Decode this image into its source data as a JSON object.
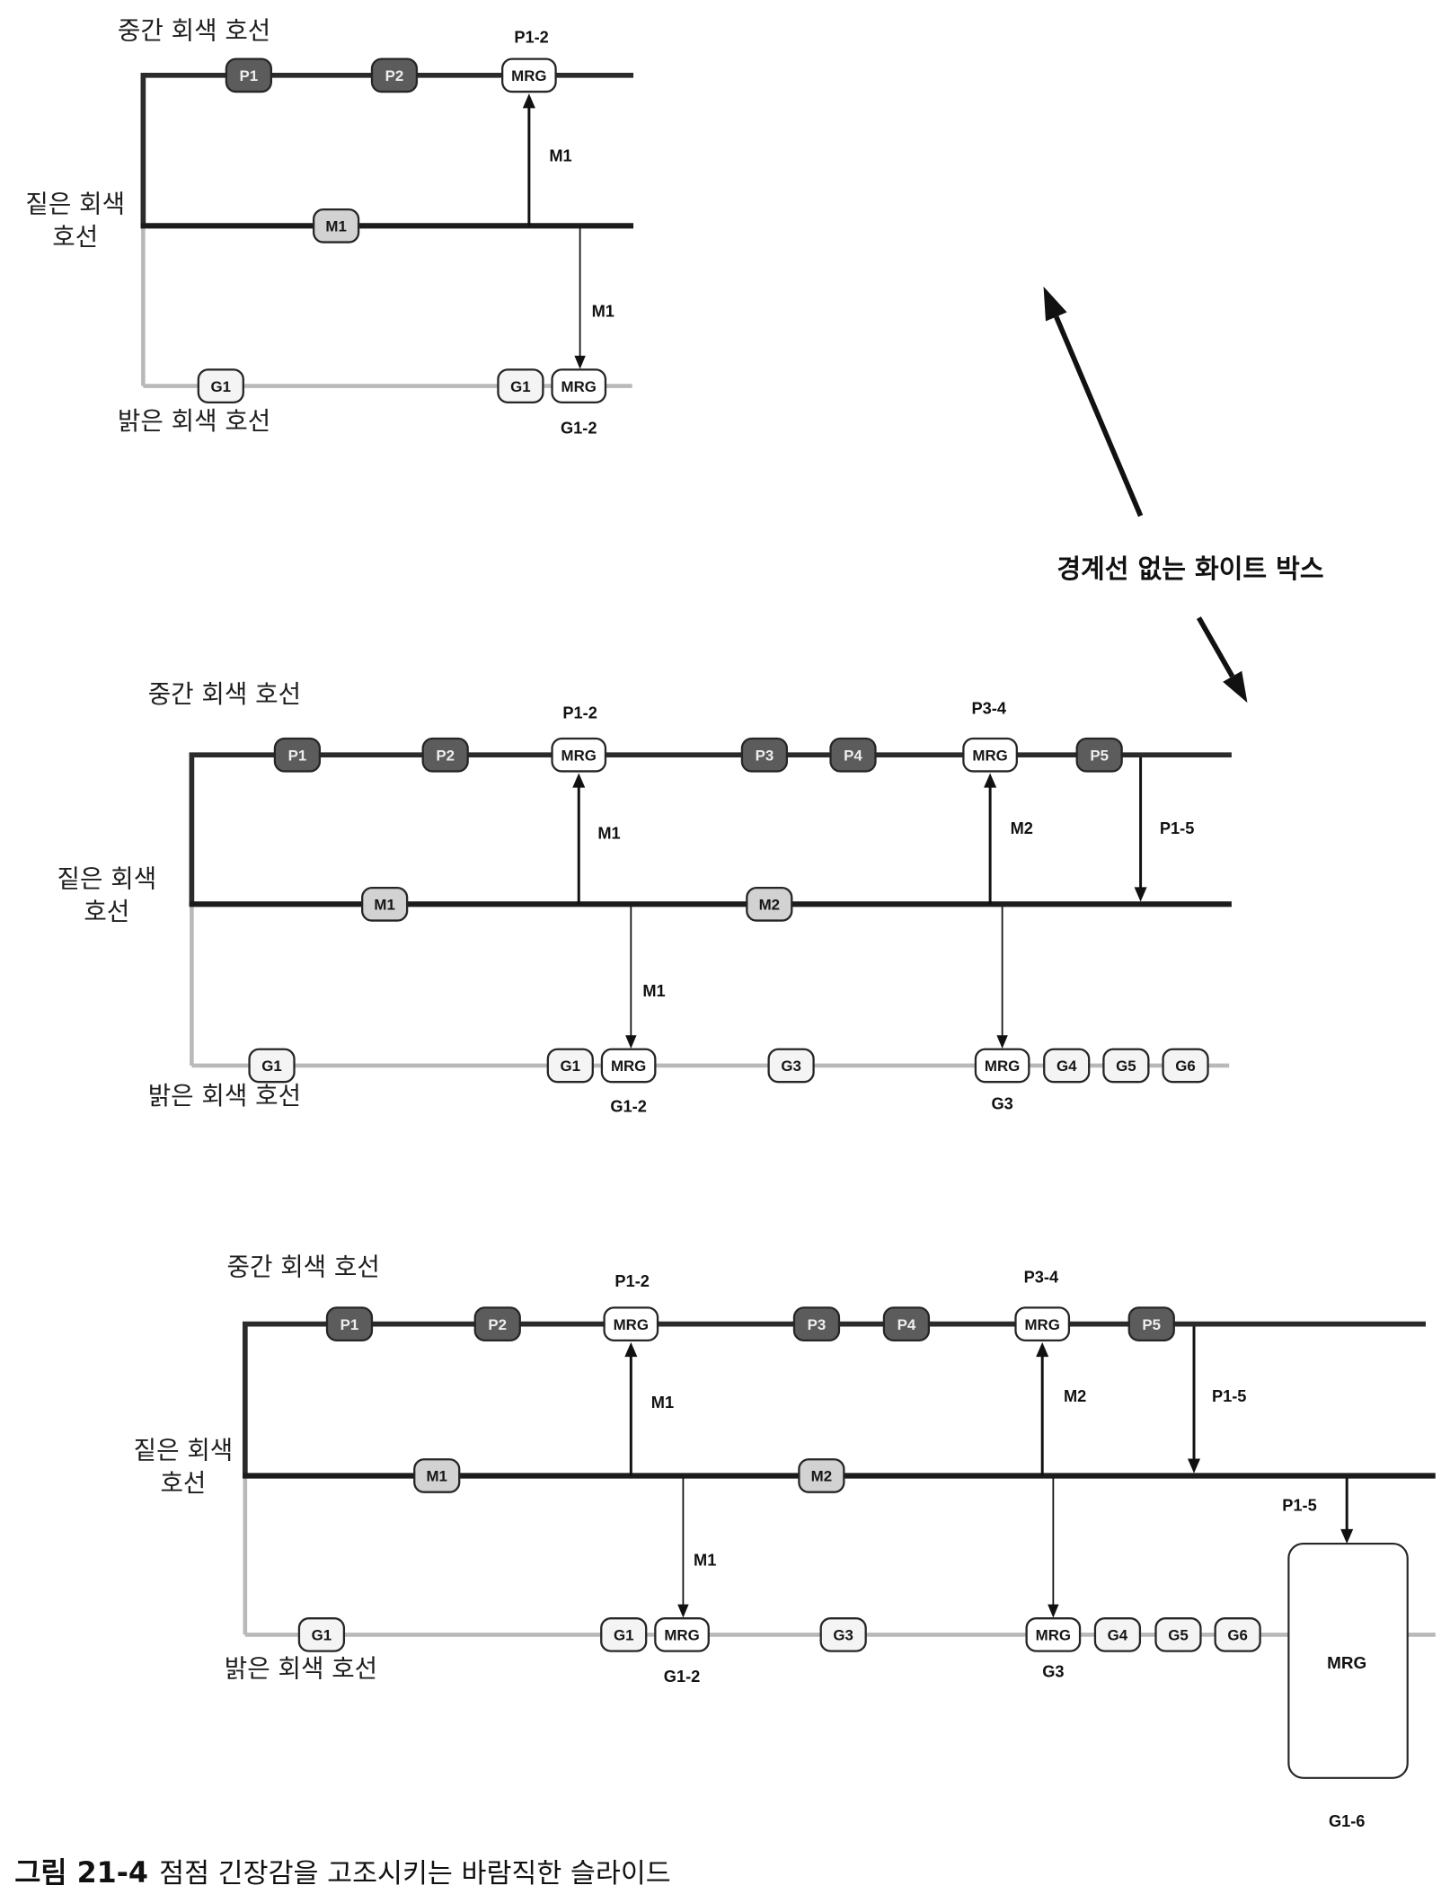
{
  "diagrams": [
    {
      "line_labels": {
        "medium": "중간 회색 호선",
        "dark": [
          "짙은 회색",
          "호선"
        ],
        "light": "밝은 회색 호선"
      },
      "medium_stops": [
        "P1",
        "P2",
        "MRG"
      ],
      "dark_stops": [
        "M1"
      ],
      "light_stops": [
        "G1",
        "G1",
        "MRG"
      ],
      "stop_labels": [
        "P1-2",
        "G1-2"
      ],
      "arrow_labels": [
        "M1",
        "M1"
      ]
    },
    {
      "line_labels": {
        "medium": "중간 회색 호선",
        "dark": [
          "짙은 회색",
          "호선"
        ],
        "light": "밝은 회색 호선"
      },
      "medium_stops": [
        "P1",
        "P2",
        "MRG",
        "P3",
        "P4",
        "MRG",
        "P5"
      ],
      "dark_stops": [
        "M1",
        "M2"
      ],
      "light_stops": [
        "G1",
        "G1",
        "MRG",
        "G3",
        "MRG",
        "G4",
        "G5",
        "G6"
      ],
      "stop_labels": [
        "P1-2",
        "P3-4",
        "G1-2",
        "G3"
      ],
      "arrow_labels": [
        "M1",
        "M2",
        "P1-5",
        "M1"
      ]
    },
    {
      "line_labels": {
        "medium": "중간 회색 호선",
        "dark": [
          "짙은 회색",
          "호선"
        ],
        "light": "밝은 회색 호선"
      },
      "medium_stops": [
        "P1",
        "P2",
        "MRG",
        "P3",
        "P4",
        "MRG",
        "P5"
      ],
      "dark_stops": [
        "M1",
        "M2"
      ],
      "light_stops": [
        "G1",
        "G1",
        "MRG",
        "G3",
        "MRG",
        "G4",
        "G5",
        "G6"
      ],
      "merge_box": "MRG",
      "stop_labels": [
        "P1-2",
        "P3-4",
        "G1-2",
        "G3",
        "G1-6"
      ],
      "arrow_labels": [
        "M1",
        "M2",
        "P1-5",
        "M1",
        "P1-5"
      ]
    }
  ],
  "annotation": "경계선 없는 화이트 박스",
  "caption": {
    "number": "그림 21-4",
    "text": "점점 긴장감을 고조시키는 바람직한 슬라이드"
  },
  "colors": {
    "medium_line": "#2b2b2b",
    "dark_line": "#1c1c1c",
    "light_line": "#b9b9b9",
    "medium_stop": "#5c5c5c",
    "dark_stop": "#d2d2d2",
    "light_stop": "#f4f4f4",
    "merge_stop": "#ffffff",
    "outline": "#262626",
    "arrow": "#111111"
  }
}
